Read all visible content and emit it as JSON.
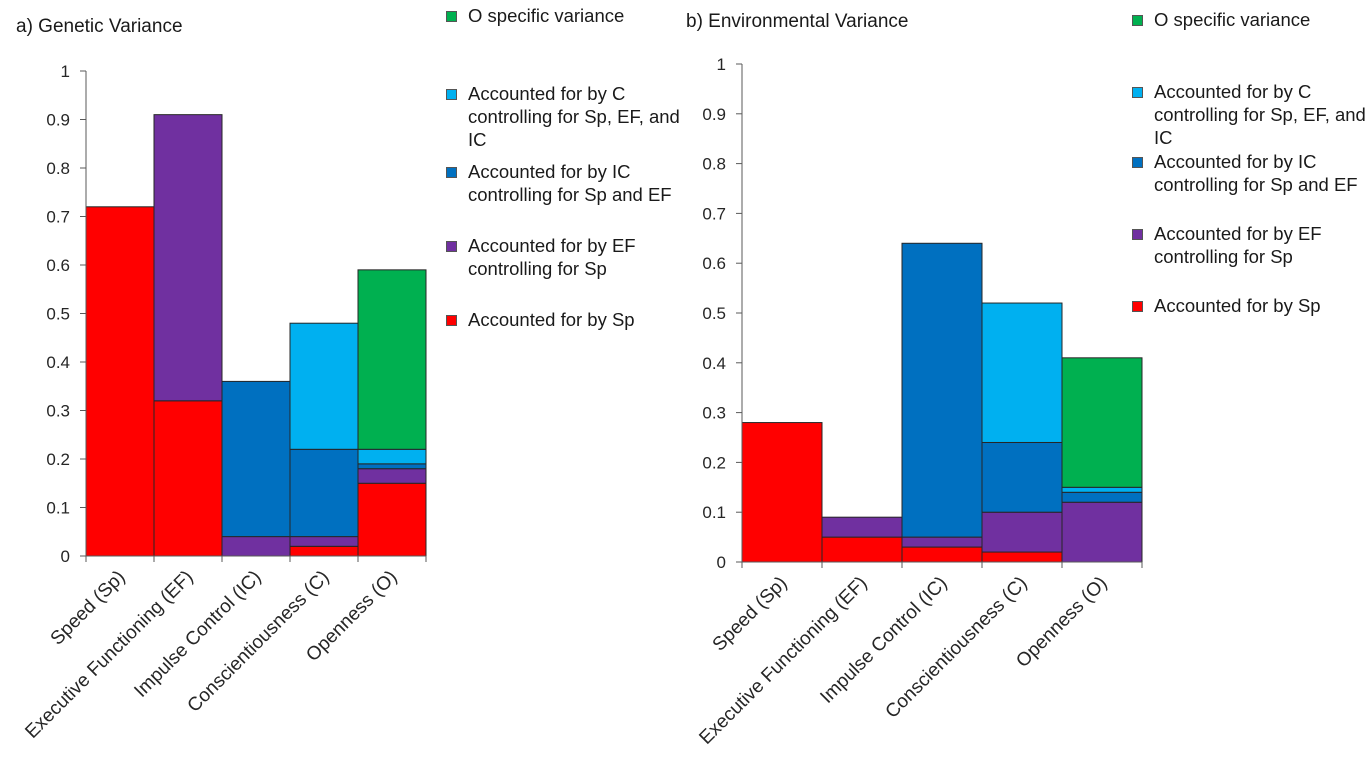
{
  "colors": {
    "Sp": "#ff0000",
    "EF": "#7030a0",
    "IC": "#0070c0",
    "C": "#00b0f0",
    "O": "#00b050"
  },
  "legend": [
    {
      "key": "O",
      "label": "O specific variance"
    },
    {
      "key": "C",
      "label": "Accounted for by C controlling for Sp, EF, and IC"
    },
    {
      "key": "IC",
      "label": "Accounted for by IC controlling  for Sp and EF"
    },
    {
      "key": "EF",
      "label": "Accounted for by EF controlling for Sp"
    },
    {
      "key": "Sp",
      "label": "Accounted for by Sp"
    }
  ],
  "chart_data": [
    {
      "type": "bar",
      "stacked": true,
      "title": "a) Genetic Variance",
      "categories": [
        "Speed (Sp)",
        "Executive Functioning (EF)",
        "Impulse Control (IC)",
        "Conscientiousness (C)",
        "Openness (O)"
      ],
      "ylim": [
        0,
        1
      ],
      "yticks": [
        "0",
        "0.1",
        "0.2",
        "0.3",
        "0.4",
        "0.5",
        "0.6",
        "0.7",
        "0.8",
        "0.9",
        "1"
      ],
      "series": [
        {
          "key": "Sp",
          "label": "Accounted for by Sp",
          "values": [
            0.72,
            0.32,
            0.0,
            0.02,
            0.15
          ]
        },
        {
          "key": "EF",
          "label": "Accounted for by EF controlling for Sp",
          "values": [
            0.0,
            0.59,
            0.04,
            0.02,
            0.03
          ]
        },
        {
          "key": "IC",
          "label": "Accounted for by IC controlling  for Sp and EF",
          "values": [
            0.0,
            0.0,
            0.32,
            0.18,
            0.01
          ]
        },
        {
          "key": "C",
          "label": "Accounted for by C controlling for Sp, EF, and IC",
          "values": [
            0.0,
            0.0,
            0.0,
            0.26,
            0.03
          ]
        },
        {
          "key": "O",
          "label": "O specific variance",
          "values": [
            0.0,
            0.0,
            0.0,
            0.0,
            0.37
          ]
        }
      ],
      "grid": false,
      "legend_position": "right"
    },
    {
      "type": "bar",
      "stacked": true,
      "title": "b) Environmental Variance",
      "categories": [
        "Speed (Sp)",
        "Executive Functioning (EF)",
        "Impulse Control (IC)",
        "Conscientiousness (C)",
        "Openness (O)"
      ],
      "ylim": [
        0,
        1
      ],
      "yticks": [
        "0",
        "0.1",
        "0.2",
        "0.3",
        "0.4",
        "0.5",
        "0.6",
        "0.7",
        "0.8",
        "0.9",
        "1"
      ],
      "series": [
        {
          "key": "Sp",
          "label": "Accounted for by Sp",
          "values": [
            0.28,
            0.05,
            0.03,
            0.02,
            0.0
          ]
        },
        {
          "key": "EF",
          "label": "Accounted for by EF controlling for Sp",
          "values": [
            0.0,
            0.04,
            0.02,
            0.08,
            0.12
          ]
        },
        {
          "key": "IC",
          "label": "Accounted for by IC controlling  for Sp and EF",
          "values": [
            0.0,
            0.0,
            0.59,
            0.14,
            0.02
          ]
        },
        {
          "key": "C",
          "label": "Accounted for by C controlling for Sp, EF, and IC",
          "values": [
            0.0,
            0.0,
            0.0,
            0.28,
            0.01
          ]
        },
        {
          "key": "O",
          "label": "O specific variance",
          "values": [
            0.0,
            0.0,
            0.0,
            0.0,
            0.26
          ]
        }
      ],
      "grid": false,
      "legend_position": "right"
    }
  ]
}
